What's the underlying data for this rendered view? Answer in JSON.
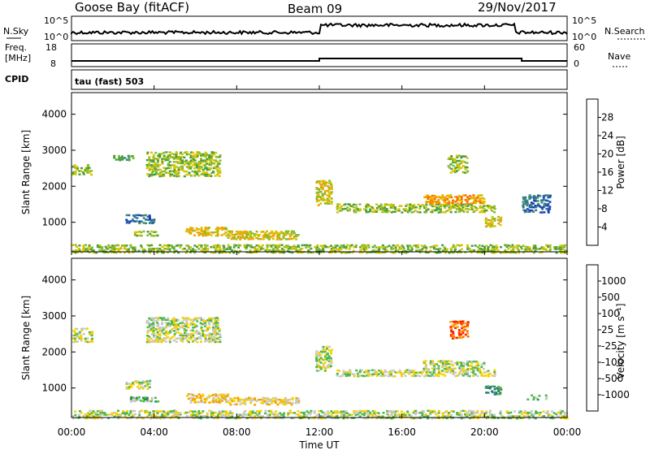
{
  "header": {
    "radar": "Goose Bay (fitACF)",
    "beam": "Beam 09",
    "date": "29/Nov/2017"
  },
  "param_panels": {
    "nsky_label": "N.Sky",
    "nsearch_label": "N.Search",
    "nsky_ticks": [
      "10^5",
      "10^0"
    ],
    "nsearch_ticks": [
      "10^5",
      "10^0"
    ],
    "freq_label": "Freq.",
    "freq_unit": "[MHz]",
    "freq_ticks": [
      "18",
      "8"
    ],
    "nave_label": "Nave",
    "nave_ticks": [
      "60",
      "0"
    ],
    "cpid_label": "CPID",
    "cpid_text": "tau (fast) 503"
  },
  "chart_data": [
    {
      "type": "heatmap",
      "name": "power",
      "ylabel": "Slant Range [km]",
      "xlabel": "Time UT",
      "xticks": [
        "00:00",
        "04:00",
        "08:00",
        "12:00",
        "16:00",
        "20:00",
        "00:00"
      ],
      "xlim_hours": [
        0,
        24
      ],
      "ylim": [
        180,
        4600
      ],
      "yticks": [
        1000,
        2000,
        3000,
        4000
      ],
      "colorbar": {
        "label": "Power [dB]",
        "ticks": [
          "4",
          "8",
          "12",
          "16",
          "20",
          "24",
          "28"
        ],
        "colors": [
          "#0000ff",
          "#1a3fb8",
          "#2f6fa0",
          "#3d8f6a",
          "#4aa03a",
          "#8dbb2a",
          "#d7c400",
          "#f3a000",
          "#ff6a00",
          "#ff2200"
        ]
      },
      "regions": [
        {
          "t0": 0.0,
          "t1": 1.0,
          "r0": 2350,
          "r1": 2650,
          "level": 5
        },
        {
          "t0": 2.6,
          "t1": 4.0,
          "r0": 1000,
          "r1": 1250,
          "level": 2
        },
        {
          "t0": 2.0,
          "t1": 3.0,
          "r0": 2750,
          "r1": 2900,
          "level": 4
        },
        {
          "t0": 3.6,
          "t1": 7.2,
          "r0": 2300,
          "r1": 3000,
          "level": 5
        },
        {
          "t0": 5.5,
          "t1": 7.5,
          "r0": 650,
          "r1": 900,
          "level": 6
        },
        {
          "t0": 7.5,
          "t1": 11.0,
          "r0": 550,
          "r1": 800,
          "level": 6
        },
        {
          "t0": 3.0,
          "t1": 4.2,
          "r0": 650,
          "r1": 800,
          "level": 5
        },
        {
          "t0": 11.8,
          "t1": 12.6,
          "r0": 1500,
          "r1": 2200,
          "level": 6
        },
        {
          "t0": 12.8,
          "t1": 20.5,
          "r0": 1300,
          "r1": 1550,
          "level": 5
        },
        {
          "t0": 17.0,
          "t1": 20.0,
          "r0": 1550,
          "r1": 1800,
          "level": 7
        },
        {
          "t0": 18.2,
          "t1": 19.2,
          "r0": 2400,
          "r1": 2900,
          "level": 5
        },
        {
          "t0": 20.0,
          "t1": 20.8,
          "r0": 900,
          "r1": 1200,
          "level": 6
        },
        {
          "t0": 21.8,
          "t1": 23.2,
          "r0": 1300,
          "r1": 1800,
          "level": 2
        },
        {
          "t0": 0.0,
          "t1": 24.0,
          "r0": 180,
          "r1": 420,
          "level": 5
        }
      ]
    },
    {
      "type": "heatmap",
      "name": "velocity",
      "ylabel": "Slant Range [km]",
      "xlabel": "Time UT",
      "xticks": [
        "00:00",
        "04:00",
        "08:00",
        "12:00",
        "16:00",
        "20:00",
        "00:00"
      ],
      "xlim_hours": [
        0,
        24
      ],
      "ylim": [
        180,
        4600
      ],
      "yticks": [
        1000,
        2000,
        3000,
        4000
      ],
      "colorbar": {
        "label": "Velocity [m s⁻¹]",
        "ticks": [
          "1000",
          "500",
          "100",
          "25",
          "-25",
          "-100",
          "-500",
          "-1000"
        ],
        "colors": [
          "#2344c8",
          "#2f6fa0",
          "#2e8a4a",
          "#4db84d",
          "#c8c8c0",
          "#f7d000",
          "#f3a000",
          "#ff6a00",
          "#ff1e00"
        ]
      },
      "regions": [
        {
          "t0": 0.0,
          "t1": 1.0,
          "r0": 2300,
          "r1": 2700,
          "level": 4
        },
        {
          "t0": 3.6,
          "t1": 7.2,
          "r0": 2300,
          "r1": 3000,
          "level": 4
        },
        {
          "t0": 2.6,
          "t1": 3.8,
          "r0": 1000,
          "r1": 1250,
          "level": 4
        },
        {
          "t0": 2.8,
          "t1": 4.2,
          "r0": 650,
          "r1": 800,
          "level": 3
        },
        {
          "t0": 5.5,
          "t1": 7.6,
          "r0": 620,
          "r1": 880,
          "level": 5
        },
        {
          "t0": 7.6,
          "t1": 11.0,
          "r0": 560,
          "r1": 780,
          "level": 5
        },
        {
          "t0": 11.8,
          "t1": 12.6,
          "r0": 1500,
          "r1": 2200,
          "level": 4
        },
        {
          "t0": 12.8,
          "t1": 20.5,
          "r0": 1350,
          "r1": 1550,
          "level": 4
        },
        {
          "t0": 17.0,
          "t1": 20.0,
          "r0": 1550,
          "r1": 1800,
          "level": 4
        },
        {
          "t0": 18.3,
          "t1": 19.2,
          "r0": 2400,
          "r1": 2900,
          "level": 7
        },
        {
          "t0": 20.0,
          "t1": 20.8,
          "r0": 850,
          "r1": 1100,
          "level": 2
        },
        {
          "t0": 21.8,
          "t1": 23.0,
          "r0": 700,
          "r1": 850,
          "level": 3
        },
        {
          "t0": 0.0,
          "t1": 24.0,
          "r0": 180,
          "r1": 420,
          "level": 4
        }
      ]
    }
  ]
}
